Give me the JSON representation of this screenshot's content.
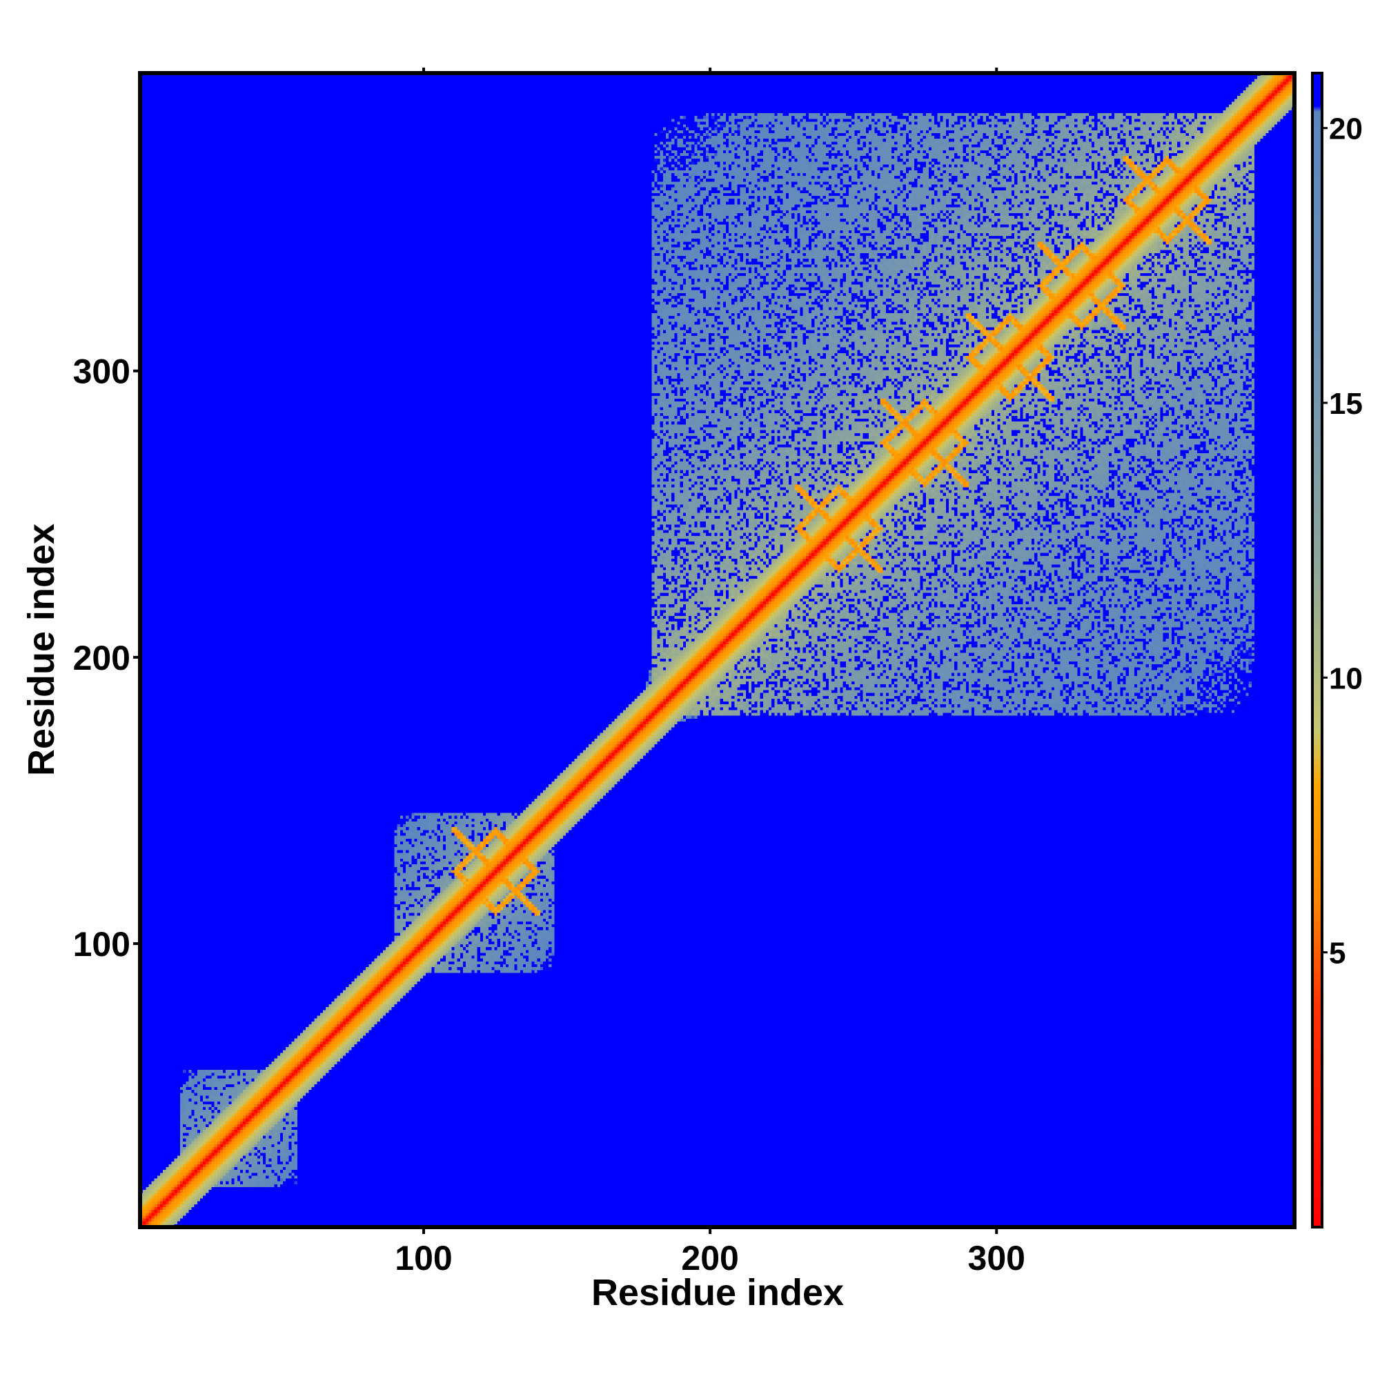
{
  "chart_data": {
    "type": "heatmap",
    "title": "",
    "xlabel": "Residue index",
    "ylabel": "Residue index",
    "xlim": [
      1,
      404
    ],
    "ylim": [
      1,
      404
    ],
    "x_ticks": [
      100,
      200,
      300
    ],
    "y_ticks": [
      100,
      200,
      300
    ],
    "x_tick_labels": [
      "100",
      "200",
      "300"
    ],
    "y_tick_labels": [
      "100",
      "200",
      "300"
    ],
    "grid": false,
    "matrix": "symmetric residue-residue distance map",
    "value_cap": 21,
    "colorbar": {
      "ticks": [
        5,
        10,
        15,
        20
      ],
      "tick_labels": [
        "5",
        "10",
        "15",
        "20"
      ],
      "range": [
        0,
        21
      ],
      "stops": [
        {
          "value": 0,
          "color": "#ff0000"
        },
        {
          "value": 4,
          "color": "#ff3300"
        },
        {
          "value": 6,
          "color": "#ff8800"
        },
        {
          "value": 8,
          "color": "#ffa500"
        },
        {
          "value": 9,
          "color": "#c8c86e"
        },
        {
          "value": 12,
          "color": "#8fa69a"
        },
        {
          "value": 16,
          "color": "#6e92b4"
        },
        {
          "value": 20.3,
          "color": "#5a86c0"
        },
        {
          "value": 20.4,
          "color": "#0000ff"
        },
        {
          "value": 21,
          "color": "#0000ff"
        }
      ]
    },
    "background_color": "#0000ff",
    "diagonal_color": "#ff0000",
    "domains": [
      {
        "start": 15,
        "end": 55,
        "density": 0.85
      },
      {
        "start": 90,
        "end": 145,
        "density": 0.8
      },
      {
        "start": 148,
        "end": 160,
        "density": 0.9
      },
      {
        "start": 178,
        "end": 195,
        "density": 0.9
      },
      {
        "start": 180,
        "end": 390,
        "density": 0.75
      }
    ],
    "contact_motifs": [
      {
        "i": 125,
        "j": 125
      },
      {
        "i": 245,
        "j": 245
      },
      {
        "i": 275,
        "j": 275
      },
      {
        "i": 305,
        "j": 305
      },
      {
        "i": 330,
        "j": 330
      },
      {
        "i": 360,
        "j": 360
      }
    ]
  }
}
